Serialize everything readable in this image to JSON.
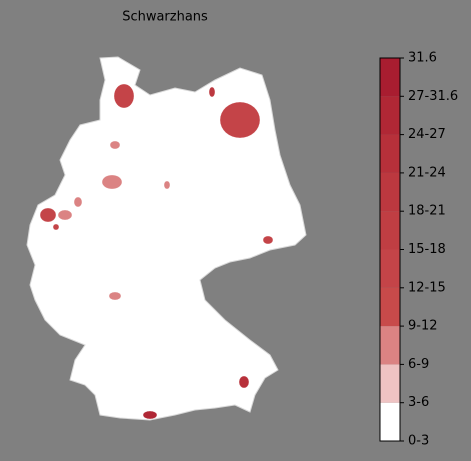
{
  "title": "Schwarzhans",
  "colorbar": {
    "boundaries": [
      0,
      3,
      6,
      9,
      12,
      15,
      18,
      21,
      24,
      27,
      31.6
    ],
    "colors": [
      "#ffffff",
      "#efc3c3",
      "#db8383",
      "#c84a4a",
      "#c44448",
      "#c03e43",
      "#bc383f",
      "#b7303a",
      "#b02735",
      "#a81d30"
    ],
    "ticks": [
      {
        "value": 0,
        "label": "0-3"
      },
      {
        "value": 3,
        "label": "3-6"
      },
      {
        "value": 6,
        "label": "6-9"
      },
      {
        "value": 9,
        "label": "9-12"
      },
      {
        "value": 12,
        "label": "12-15"
      },
      {
        "value": 15,
        "label": "15-18"
      },
      {
        "value": 18,
        "label": "18-21"
      },
      {
        "value": 21,
        "label": "21-24"
      },
      {
        "value": 24,
        "label": "24-27"
      },
      {
        "value": 27,
        "label": "27-31.6"
      },
      31.6
    ]
  },
  "regions": {
    "values": [
      14,
      20,
      13,
      7,
      8,
      7,
      7,
      13,
      8,
      14,
      13,
      7,
      22,
      26
    ]
  }
}
